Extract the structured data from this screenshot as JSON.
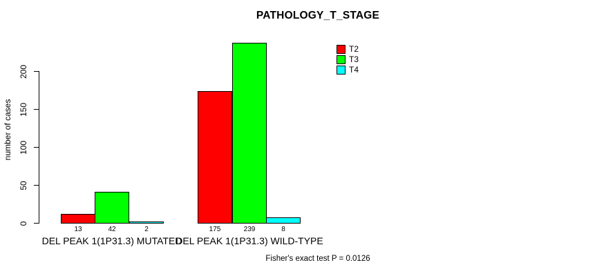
{
  "chart_data": {
    "type": "bar",
    "title": "PATHOLOGY_T_STAGE",
    "ylabel": "number of cases",
    "xlabel": "",
    "yticks": [
      0,
      50,
      100,
      150,
      200
    ],
    "ylim": [
      0,
      245
    ],
    "grid": false,
    "legend_position": "top-right",
    "categories": [
      "DEL PEAK 1(1P31.3) MUTATED",
      "DEL PEAK 1(1P31.3) WILD-TYPE"
    ],
    "series": [
      {
        "name": "T2",
        "color": "#ff0000",
        "values": [
          13,
          175
        ]
      },
      {
        "name": "T3",
        "color": "#00ff00",
        "values": [
          42,
          239
        ]
      },
      {
        "name": "T4",
        "color": "#00ffff",
        "values": [
          2,
          8
        ]
      }
    ],
    "bar_value_labels_shown": true,
    "annotation": "Fisher's exact test P = 0.0126",
    "colors": {
      "background": "#ffffff",
      "axis": "#000000",
      "text": "#000000",
      "bar_border": "#000000"
    }
  }
}
